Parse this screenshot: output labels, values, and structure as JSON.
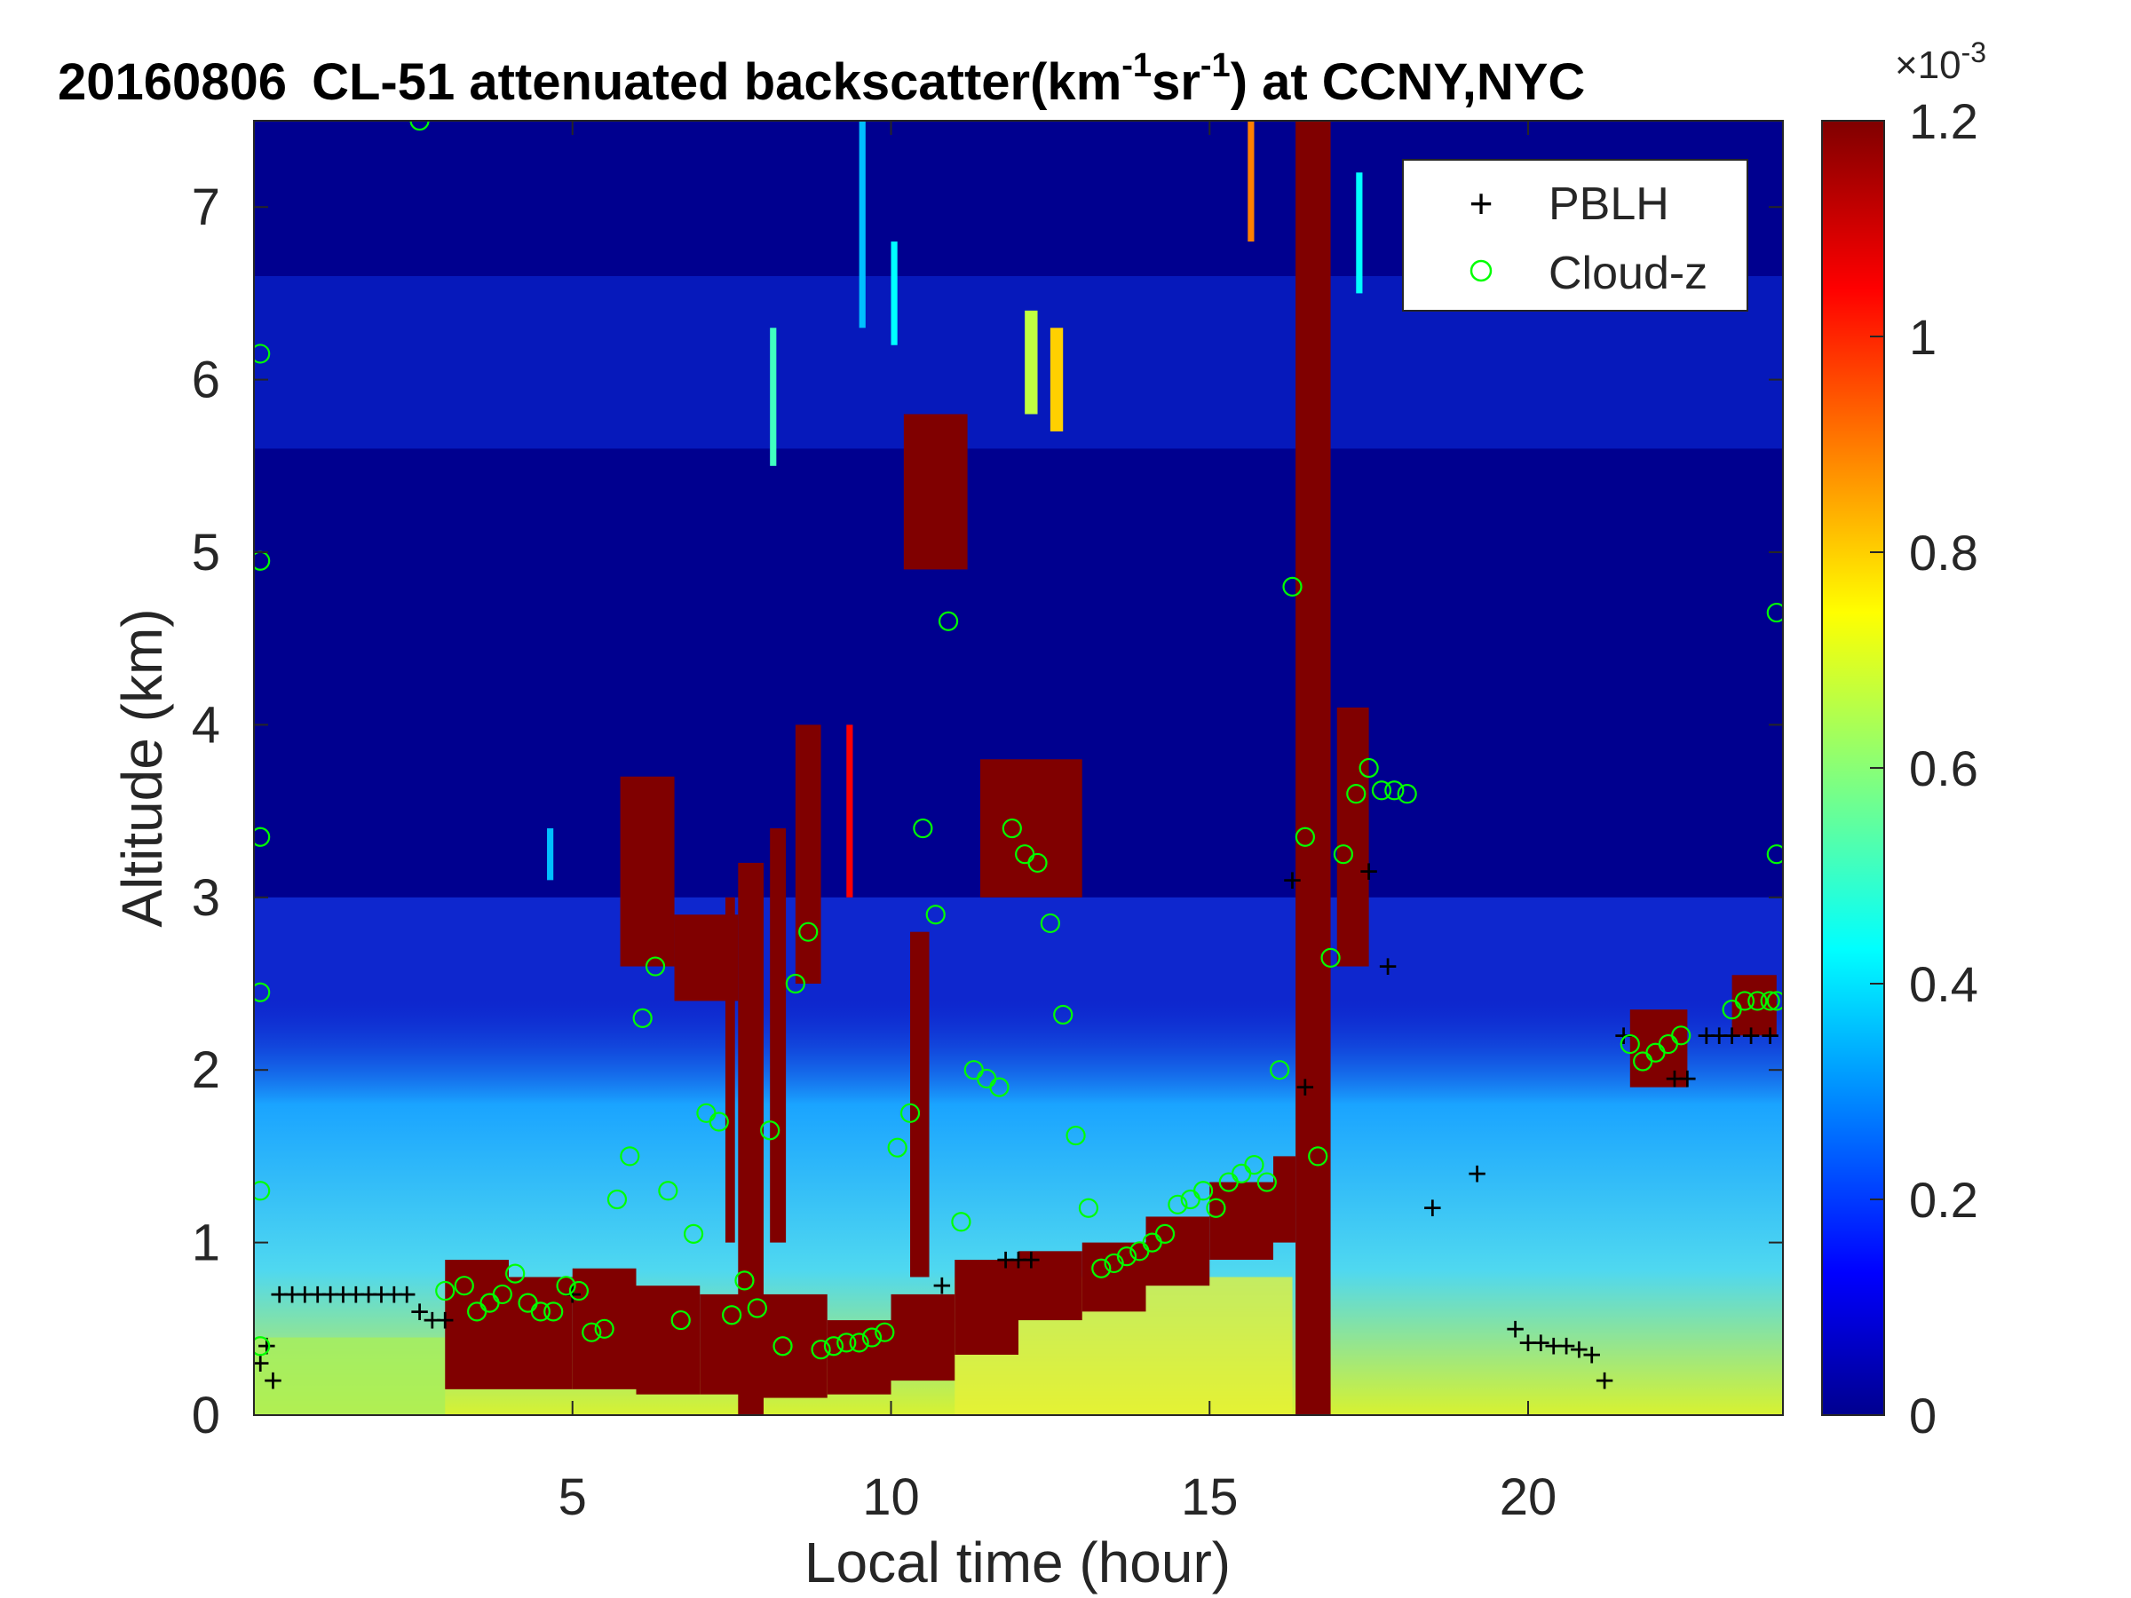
{
  "chart_data": {
    "type": "heatmap",
    "title": {
      "date": "20160806",
      "prefix": "CL-51 attenuated backscatter(km",
      "sup1": "-1",
      "mid": "sr",
      "sup2": "-1",
      "suffix": ") at CCNY,NYC"
    },
    "xlabel": "Local time (hour)",
    "ylabel": "Altitude (km)",
    "xlim": [
      0,
      24
    ],
    "ylim": [
      0,
      7.5
    ],
    "xticks": [
      5,
      10,
      15,
      20
    ],
    "yticks": [
      0,
      1,
      2,
      3,
      4,
      5,
      6,
      7
    ],
    "colorbar": {
      "colormap": "jet",
      "range": [
        0,
        1.2
      ],
      "ticks": [
        "0",
        "0.2",
        "0.4",
        "0.6",
        "0.8",
        "1",
        "1.2"
      ],
      "tick_values": [
        0,
        0.2,
        0.4,
        0.6,
        0.8,
        1.0,
        1.2
      ],
      "exponent_base": "×10",
      "exponent": "-3"
    },
    "legend": {
      "placement": "top-right",
      "entries": [
        {
          "label": "PBLH",
          "marker": "+",
          "color": "#000000"
        },
        {
          "label": "Cloud-z",
          "marker": "o",
          "color": "#00ff00"
        }
      ]
    },
    "series": [
      {
        "name": "PBLH",
        "x": [
          0.1,
          0.2,
          0.3,
          0.4,
          0.6,
          0.8,
          1.0,
          1.2,
          1.4,
          1.6,
          1.8,
          2.0,
          2.2,
          2.4,
          2.6,
          2.8,
          3.0,
          10.8,
          11.8,
          12.0,
          12.2,
          16.3,
          16.5,
          17.5,
          17.8,
          19.2,
          18.5,
          19.8,
          20.0,
          20.2,
          20.4,
          20.6,
          20.8,
          21.0,
          21.2,
          21.5,
          22.3,
          22.5,
          22.8,
          23.0,
          23.2,
          23.5,
          23.8,
          5.0
        ],
        "y": [
          0.3,
          0.4,
          0.2,
          0.7,
          0.7,
          0.7,
          0.7,
          0.7,
          0.7,
          0.7,
          0.7,
          0.7,
          0.7,
          0.7,
          0.6,
          0.55,
          0.55,
          0.75,
          0.9,
          0.9,
          0.9,
          3.1,
          1.9,
          3.15,
          2.6,
          1.4,
          1.2,
          0.5,
          0.42,
          0.42,
          0.4,
          0.4,
          0.38,
          0.35,
          0.2,
          2.2,
          1.95,
          1.95,
          2.2,
          2.2,
          2.2,
          2.2,
          2.2,
          0.7
        ]
      },
      {
        "name": "Cloud-z",
        "x": [
          0.1,
          0.1,
          0.1,
          0.1,
          0.1,
          0.1,
          2.6,
          3.0,
          3.3,
          3.5,
          3.7,
          3.9,
          4.1,
          4.3,
          4.5,
          4.7,
          4.9,
          5.1,
          5.3,
          5.5,
          5.7,
          5.9,
          6.1,
          6.3,
          6.5,
          6.7,
          6.9,
          7.1,
          7.3,
          7.5,
          7.7,
          7.9,
          8.1,
          8.3,
          8.5,
          8.7,
          8.9,
          9.1,
          9.3,
          9.5,
          9.7,
          9.9,
          10.1,
          10.3,
          10.5,
          10.7,
          10.9,
          11.1,
          11.3,
          11.5,
          11.7,
          11.9,
          12.1,
          12.3,
          12.5,
          12.7,
          12.9,
          13.1,
          13.3,
          13.5,
          13.7,
          13.9,
          14.1,
          14.3,
          14.5,
          14.7,
          14.9,
          15.1,
          15.3,
          15.5,
          15.7,
          15.9,
          16.1,
          16.3,
          16.5,
          16.7,
          16.9,
          17.1,
          17.3,
          17.5,
          17.7,
          17.9,
          18.1,
          21.6,
          21.8,
          22.0,
          22.2,
          22.4,
          23.2,
          23.4,
          23.6,
          23.8,
          23.9,
          23.9,
          23.9
        ],
        "y": [
          6.15,
          4.95,
          3.35,
          2.45,
          1.3,
          0.4,
          7.5,
          0.72,
          0.75,
          0.6,
          0.65,
          0.7,
          0.82,
          0.65,
          0.6,
          0.6,
          0.75,
          0.72,
          0.48,
          0.5,
          1.25,
          1.5,
          2.3,
          2.6,
          1.3,
          0.55,
          1.05,
          1.75,
          1.7,
          0.58,
          0.78,
          0.62,
          1.65,
          0.4,
          2.5,
          2.8,
          0.38,
          0.4,
          0.42,
          0.42,
          0.45,
          0.48,
          1.55,
          1.75,
          3.4,
          2.9,
          4.6,
          1.12,
          2.0,
          1.95,
          1.9,
          3.4,
          3.25,
          3.2,
          2.85,
          2.32,
          1.62,
          1.2,
          0.85,
          0.88,
          0.92,
          0.95,
          1.0,
          1.05,
          1.22,
          1.25,
          1.3,
          1.2,
          1.35,
          1.4,
          1.45,
          1.35,
          2.0,
          4.8,
          3.35,
          1.5,
          2.65,
          3.25,
          3.6,
          3.75,
          3.62,
          3.62,
          3.6,
          2.15,
          2.05,
          2.1,
          2.15,
          2.2,
          2.35,
          2.4,
          2.4,
          2.4,
          2.4,
          3.25,
          4.65
        ]
      }
    ],
    "regions": [
      {
        "name": "lower-aerosol-layer",
        "x": [
          0,
          24
        ],
        "y": [
          0,
          0.9
        ],
        "value_range": [
          0.4,
          1.0
        ]
      },
      {
        "name": "thick-cloud-base-band",
        "x": [
          3,
          16.3
        ],
        "y": [
          0.1,
          1.4
        ],
        "value": 1.2
      },
      {
        "name": "vertical-cloud-column",
        "x": [
          16.4,
          16.9
        ],
        "y": [
          0,
          7.5
        ],
        "value": 1.2
      },
      {
        "name": "midlevel-clouds",
        "x": [
          5.7,
          13.0
        ],
        "y": [
          2.4,
          5.8
        ],
        "value": 1.2
      },
      {
        "name": "late-clouds",
        "x": [
          21.5,
          24
        ],
        "y": [
          1.8,
          2.6
        ],
        "value": 1.2
      }
    ]
  }
}
